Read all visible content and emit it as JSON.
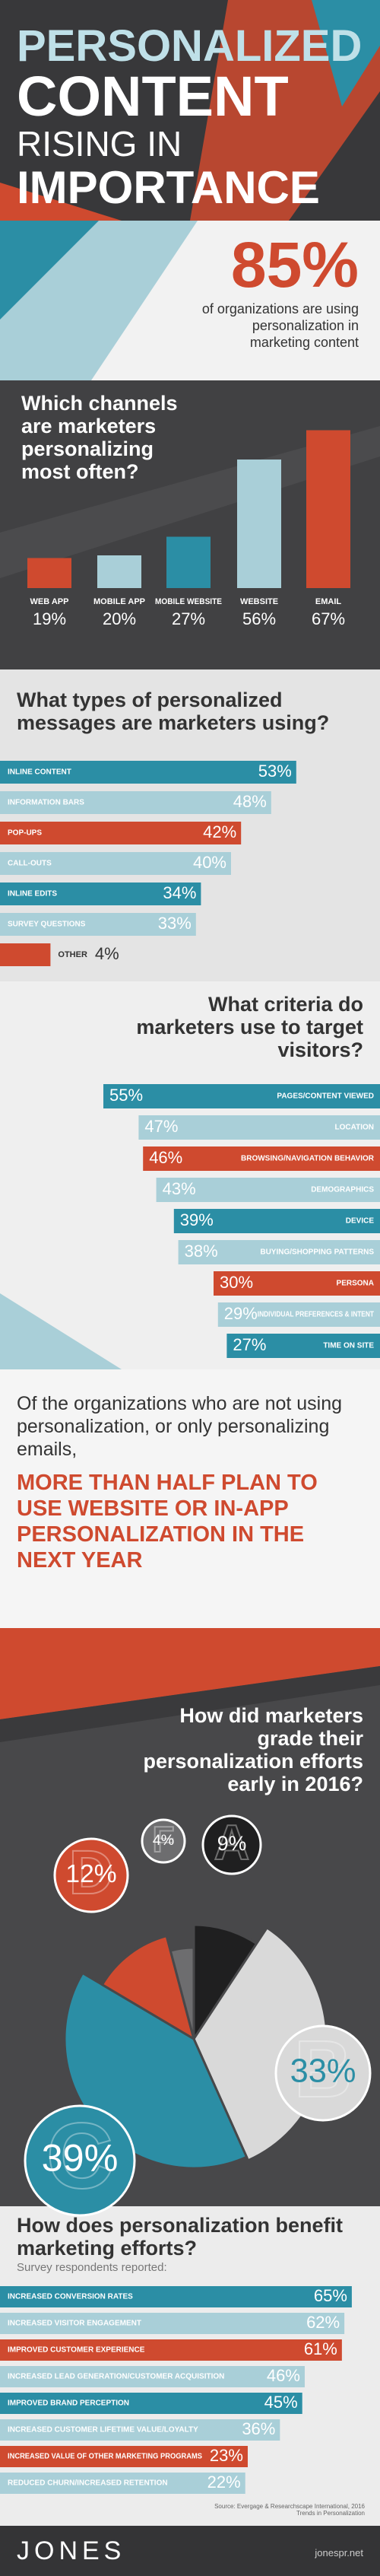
{
  "header": {
    "title_lines": [
      "PERSONALIZED",
      "CONTENT",
      "RISING IN",
      "IMPORTANCE"
    ]
  },
  "stat": {
    "value": 85,
    "value_label": "85%",
    "text": "of organizations are using personalization in marketing content"
  },
  "chart_data": [
    {
      "type": "bar",
      "title": "Which channels are marketers personalizing most often?",
      "categories": [
        "WEB APP",
        "MOBILE APP",
        "MOBILE WEBSITE",
        "WEBSITE",
        "EMAIL"
      ],
      "values": [
        19,
        20,
        27,
        56,
        67
      ],
      "value_labels": [
        "19%",
        "20%",
        "27%",
        "56%",
        "67%"
      ],
      "colors": [
        "#cf4a2f",
        "#a9cfd8",
        "#2b8ea5",
        "#a9cfd8",
        "#cf4a2f"
      ]
    },
    {
      "type": "hbar",
      "title": "What types of personalized messages are marketers using?",
      "categories": [
        "INLINE CONTENT",
        "INFORMATION BARS",
        "POP-UPS",
        "CALL-OUTS",
        "INLINE EDITS",
        "SURVEY QUESTIONS",
        "OTHER"
      ],
      "values": [
        53,
        48,
        42,
        40,
        34,
        33,
        4
      ],
      "value_labels": [
        "53%",
        "48%",
        "42%",
        "40%",
        "34%",
        "33%",
        "4%"
      ],
      "colors": [
        "#2b8ea5",
        "#a9cfd8",
        "#cf4a2f",
        "#a9cfd8",
        "#2b8ea5",
        "#a9cfd8",
        "#cf4a2f"
      ]
    },
    {
      "type": "hbar",
      "align": "right",
      "title": "What criteria do marketers use to target visitors?",
      "categories": [
        "PAGES/CONTENT VIEWED",
        "LOCATION",
        "BROWSING/NAVIGATION BEHAVIOR",
        "DEMOGRAPHICS",
        "DEVICE",
        "BUYING/SHOPPING PATTERNS",
        "PERSONA",
        "INDIVIDUAL PREFERENCES & INTENT",
        "TIME ON SITE"
      ],
      "values": [
        55,
        47,
        46,
        43,
        39,
        38,
        30,
        29,
        27
      ],
      "value_labels": [
        "55%",
        "47%",
        "46%",
        "43%",
        "39%",
        "38%",
        "30%",
        "29%",
        "27%"
      ],
      "colors": [
        "#2b8ea5",
        "#a9cfd8",
        "#cf4a2f",
        "#a9cfd8",
        "#2b8ea5",
        "#a9cfd8",
        "#cf4a2f",
        "#a9cfd8",
        "#2b8ea5"
      ]
    },
    {
      "type": "pie",
      "title": "How did marketers grade their personalization efforts early in 2016?",
      "categories": [
        "A",
        "B",
        "C",
        "D",
        "F"
      ],
      "values": [
        9,
        33,
        39,
        12,
        4
      ],
      "value_labels": [
        "9%",
        "33%",
        "39%",
        "12%",
        "4%"
      ],
      "colors": [
        "#1f1f20",
        "#d9d9d9",
        "#2b8ea5",
        "#cf4a2f",
        "#6d6d6f"
      ]
    },
    {
      "type": "hbar",
      "title": "How does personalization benefit marketing efforts?",
      "subtitle": "Survey respondents reported:",
      "categories": [
        "INCREASED CONVERSION RATES",
        "INCREASED VISITOR ENGAGEMENT",
        "IMPROVED CUSTOMER EXPERIENCE",
        "INCREASED LEAD GENERATION/CUSTOMER ACQUISITION",
        "IMPROVED BRAND PERCEPTION",
        "INCREASED CUSTOMER LIFETIME VALUE/LOYALTY",
        "INCREASED VALUE OF OTHER MARKETING PROGRAMS",
        "REDUCED CHURN/INCREASED RETENTION"
      ],
      "values": [
        65,
        62,
        61,
        46,
        45,
        36,
        23,
        22
      ],
      "value_labels": [
        "65%",
        "62%",
        "61%",
        "46%",
        "45%",
        "36%",
        "23%",
        "22%"
      ],
      "colors": [
        "#2b8ea5",
        "#a9cfd8",
        "#cf4a2f",
        "#a9cfd8",
        "#2b8ea5",
        "#a9cfd8",
        "#cf4a2f",
        "#a9cfd8"
      ]
    }
  ],
  "plan": {
    "intro": "Of the organizations who are not using personalization, or only personalizing emails,",
    "highlight": "MORE THAN HALF PLAN TO USE WEBSITE OR IN-APP PERSONALIZATION IN THE NEXT YEAR"
  },
  "source": "Source: Evergage & Researchscape International, 2016 Trends in Personalization",
  "footer": {
    "logo": "JONES",
    "url": "jonespr.net"
  }
}
